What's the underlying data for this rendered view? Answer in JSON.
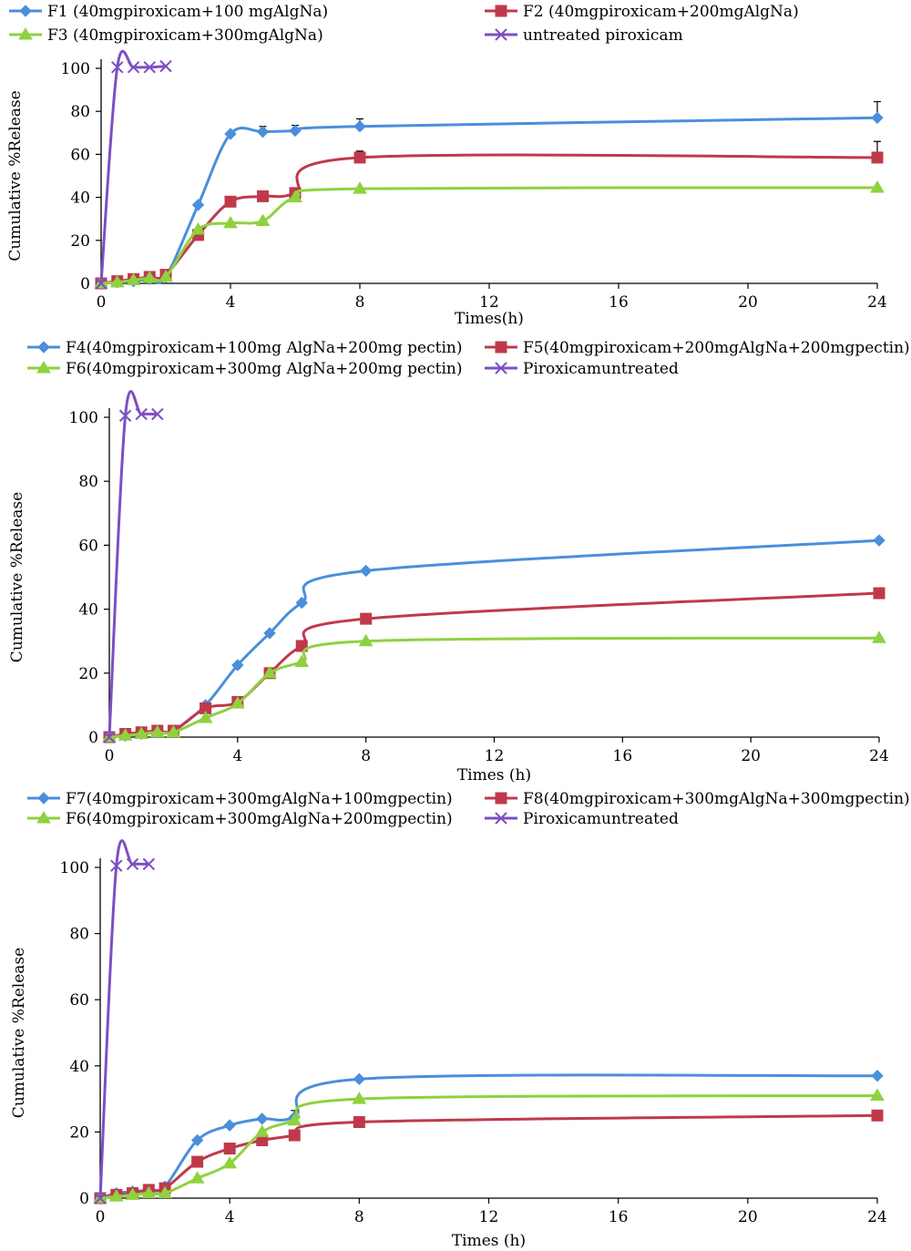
{
  "chart_data": [
    {
      "type": "line",
      "title": "",
      "xlabel": "Times(h)",
      "ylabel": "Cumulative %Release",
      "xlim": [
        0,
        24
      ],
      "ylim": [
        0,
        100
      ],
      "xticks": [
        "0",
        "4",
        "8",
        "12",
        "16",
        "20",
        "24"
      ],
      "yticks": [
        "0",
        "20",
        "40",
        "60",
        "80",
        "100"
      ],
      "grid": false,
      "legend_position": "top",
      "series": [
        {
          "name": "F1 (40mgpiroxicam+100 mgAlgNa)",
          "color": "#4a8fdc",
          "marker": "diamond",
          "x": [
            0,
            0.5,
            1,
            1.5,
            2,
            3,
            4,
            5,
            6,
            8,
            24
          ],
          "y": [
            0,
            0.5,
            1,
            2,
            3,
            36.5,
            69.5,
            70.5,
            71,
            73,
            77
          ],
          "error": [
            0,
            0,
            0,
            0,
            0,
            0,
            0,
            2.5,
            2.5,
            3.5,
            7.5
          ]
        },
        {
          "name": "F2 (40mgpiroxicam+200mgAlgNa)",
          "color": "#c0394b",
          "marker": "square",
          "x": [
            0,
            0.5,
            1,
            1.5,
            2,
            3,
            4,
            5,
            6,
            8,
            24
          ],
          "y": [
            0,
            1,
            2,
            3,
            4,
            22.5,
            38,
            40.5,
            42,
            58.5,
            58.5
          ],
          "error": [
            0,
            0,
            0,
            0,
            0,
            0,
            0,
            0,
            0,
            3,
            7.5
          ]
        },
        {
          "name": "F3 (40mgpiroxicam+300mgAlgNa)",
          "color": "#8fd13f",
          "marker": "triangle",
          "x": [
            0,
            0.5,
            1,
            1.5,
            2,
            3,
            4,
            5,
            6,
            8,
            24
          ],
          "y": [
            0,
            0.5,
            1.5,
            2.5,
            3,
            25,
            28,
            29,
            40,
            44,
            44.5
          ],
          "error": [
            0,
            0,
            0,
            0,
            0,
            0,
            0,
            0,
            0,
            0,
            0
          ]
        },
        {
          "name": "untreated piroxicam",
          "color": "#7c4fc4",
          "marker": "x",
          "x": [
            0,
            0.5,
            1,
            1.5,
            2
          ],
          "y": [
            0,
            100.5,
            100.5,
            100.5,
            101
          ],
          "error": [
            0,
            0,
            0,
            0,
            0
          ]
        }
      ]
    },
    {
      "type": "line",
      "title": "",
      "xlabel": "Times (h)",
      "ylabel": "Cumulative %Release",
      "xlim": [
        0,
        24
      ],
      "ylim": [
        0,
        100
      ],
      "xticks": [
        "0",
        "4",
        "8",
        "12",
        "16",
        "20",
        "24"
      ],
      "yticks": [
        "0",
        "20",
        "40",
        "60",
        "80",
        "100"
      ],
      "grid": false,
      "legend_position": "top",
      "series": [
        {
          "name": "F4(40mgpiroxicam+100mg AlgNa+200mg pectin)",
          "color": "#4a8fdc",
          "marker": "diamond",
          "x": [
            0,
            0.5,
            1,
            1.5,
            2,
            3,
            4,
            5,
            6,
            8,
            24
          ],
          "y": [
            0,
            0.5,
            1,
            1.5,
            2,
            10,
            22.5,
            32.5,
            42,
            52,
            61.5
          ],
          "error": [
            0,
            0,
            0,
            0,
            0,
            0,
            0,
            0,
            0,
            0,
            0
          ]
        },
        {
          "name": "F5(40mgpiroxicam+200mgAlgNa+200mgpectin)",
          "color": "#c0394b",
          "marker": "square",
          "x": [
            0,
            0.5,
            1,
            1.5,
            2,
            3,
            4,
            5,
            6,
            8,
            24
          ],
          "y": [
            0,
            1,
            1.5,
            2,
            2,
            9,
            11,
            20,
            28.5,
            37,
            45
          ],
          "error": [
            0,
            0,
            0,
            0,
            0,
            0,
            0,
            0,
            0,
            0,
            0
          ]
        },
        {
          "name": "F6(40mgpiroxicam+300mg AlgNa+200mg pectin)",
          "color": "#8fd13f",
          "marker": "triangle",
          "x": [
            0,
            0.5,
            1,
            1.5,
            2,
            3,
            4,
            5,
            6,
            8,
            24
          ],
          "y": [
            0,
            0.5,
            1,
            1.5,
            1.5,
            6,
            10.5,
            20,
            23.5,
            30,
            31
          ],
          "error": [
            0,
            0,
            0,
            0,
            0,
            0,
            0,
            0,
            0,
            0,
            0
          ]
        },
        {
          "name": "Piroxicamuntreated",
          "color": "#7c4fc4",
          "marker": "x",
          "x": [
            0,
            0.5,
            1,
            1.5
          ],
          "y": [
            0,
            100.5,
            101,
            101
          ],
          "error": [
            0,
            0,
            0,
            0
          ]
        }
      ]
    },
    {
      "type": "line",
      "title": "",
      "xlabel": "Times (h)",
      "ylabel": "Cumulative %Release",
      "xlim": [
        0,
        24
      ],
      "ylim": [
        0,
        100
      ],
      "xticks": [
        "0",
        "4",
        "8",
        "12",
        "16",
        "20",
        "24"
      ],
      "yticks": [
        "0",
        "20",
        "40",
        "60",
        "80",
        "100"
      ],
      "grid": false,
      "legend_position": "top",
      "series": [
        {
          "name": "F7(40mgpiroxicam+300mgAlgNa+100mgpectin)",
          "color": "#4a8fdc",
          "marker": "diamond",
          "x": [
            0,
            0.5,
            1,
            1.5,
            2,
            3,
            4,
            5,
            6,
            8,
            24
          ],
          "y": [
            0,
            1.5,
            2,
            2.5,
            3.5,
            17.5,
            22,
            24,
            24.5,
            36,
            37
          ],
          "error": [
            0,
            0,
            0,
            0,
            0,
            0,
            0,
            0,
            2,
            0,
            0
          ]
        },
        {
          "name": "F8(40mgpiroxicam+300mgAlgNa+300mgpectin)",
          "color": "#c0394b",
          "marker": "square",
          "x": [
            0,
            0.5,
            1,
            1.5,
            2,
            3,
            4,
            5,
            6,
            8,
            24
          ],
          "y": [
            0,
            1,
            1.5,
            2.5,
            3,
            11,
            15,
            17.5,
            19,
            23,
            25
          ],
          "error": [
            0,
            0,
            0,
            0,
            0,
            0,
            0,
            0,
            0,
            0,
            0
          ]
        },
        {
          "name": "F6(40mgpiroxicam+300mgAlgNa+200mgpectin)",
          "color": "#8fd13f",
          "marker": "triangle",
          "x": [
            0,
            0.5,
            1,
            1.5,
            2,
            3,
            4,
            5,
            6,
            8,
            24
          ],
          "y": [
            0,
            0.5,
            1,
            1.5,
            1.5,
            6,
            10.5,
            20,
            23.5,
            30,
            31
          ],
          "error": [
            0,
            0,
            0,
            0,
            0,
            0,
            0,
            0,
            0,
            0,
            0
          ]
        },
        {
          "name": "Piroxicamuntreated",
          "color": "#7c4fc4",
          "marker": "x",
          "x": [
            0,
            0.5,
            1,
            1.5
          ],
          "y": [
            0,
            100.5,
            101,
            101
          ],
          "error": [
            0,
            0,
            0,
            0
          ]
        }
      ]
    }
  ]
}
